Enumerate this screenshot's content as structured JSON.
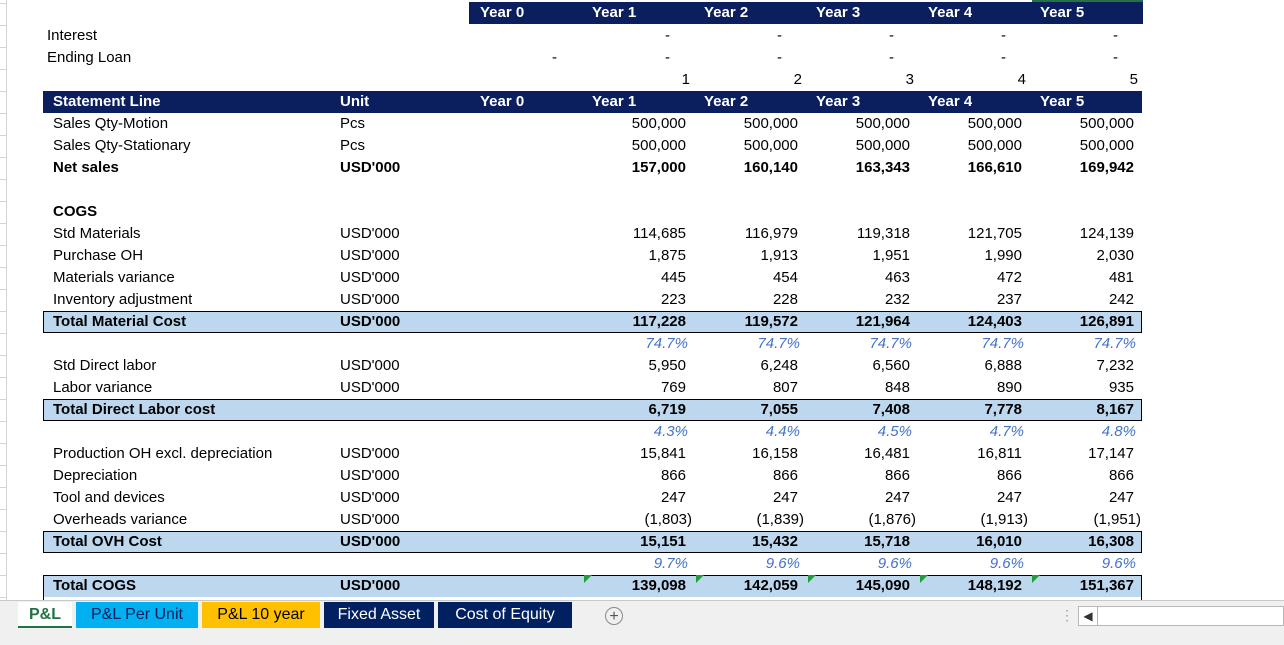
{
  "colors": {
    "header_bg": "#0b1f5e",
    "band_bg": "#bdd7ee",
    "pct_text": "#4472c4",
    "tab_green": "#217346",
    "tab_blue": "#00b0f0",
    "tab_yellow": "#ffc000",
    "tab_navy": "#002060"
  },
  "top_header": {
    "years": [
      "Year 0",
      "Year 1",
      "Year 2",
      "Year 3",
      "Year 4",
      "Year 5"
    ]
  },
  "loan_rows": [
    {
      "label": "Interest",
      "y0": "",
      "y1": "-",
      "y2": "-",
      "y3": "-",
      "y4": "-",
      "y5": "-"
    },
    {
      "label": "Ending Loan",
      "y0": "-",
      "y1": "-",
      "y2": "-",
      "y3": "-",
      "y4": "-",
      "y5": "-"
    }
  ],
  "index_row": [
    "1",
    "2",
    "3",
    "4",
    "5"
  ],
  "table_header": {
    "line": "Statement Line",
    "unit": "Unit",
    "years": [
      "Year 0",
      "Year 1",
      "Year 2",
      "Year 3",
      "Year 4",
      "Year 5"
    ]
  },
  "sales": [
    {
      "label": "Sales Qty-Motion",
      "unit": "Pcs",
      "vals": [
        "500,000",
        "500,000",
        "500,000",
        "500,000",
        "500,000"
      ]
    },
    {
      "label": "Sales Qty-Stationary",
      "unit": "Pcs",
      "vals": [
        "500,000",
        "500,000",
        "500,000",
        "500,000",
        "500,000"
      ]
    }
  ],
  "net_sales": {
    "label": "Net sales",
    "unit": "USD'000",
    "vals": [
      "157,000",
      "160,140",
      "163,343",
      "166,610",
      "169,942"
    ]
  },
  "cogs_title": "COGS",
  "materials": [
    {
      "label": "Std Materials",
      "unit": "USD'000",
      "vals": [
        "114,685",
        "116,979",
        "119,318",
        "121,705",
        "124,139"
      ]
    },
    {
      "label": "Purchase OH",
      "unit": "USD'000",
      "vals": [
        "1,875",
        "1,913",
        "1,951",
        "1,990",
        "2,030"
      ]
    },
    {
      "label": "Materials variance",
      "unit": "USD'000",
      "vals": [
        "445",
        "454",
        "463",
        "472",
        "481"
      ]
    },
    {
      "label": "Inventory adjustment",
      "unit": "USD'000",
      "vals": [
        "223",
        "228",
        "232",
        "237",
        "242"
      ]
    }
  ],
  "total_material": {
    "label": "Total Material Cost",
    "unit": "USD'000",
    "vals": [
      "117,228",
      "119,572",
      "121,964",
      "124,403",
      "126,891"
    ],
    "pct": [
      "74.7%",
      "74.7%",
      "74.7%",
      "74.7%",
      "74.7%"
    ]
  },
  "labor": [
    {
      "label": "Std Direct labor",
      "unit": "USD'000",
      "vals": [
        "5,950",
        "6,248",
        "6,560",
        "6,888",
        "7,232"
      ]
    },
    {
      "label": "Labor variance",
      "unit": "USD'000",
      "vals": [
        "769",
        "807",
        "848",
        "890",
        "935"
      ]
    }
  ],
  "total_labor": {
    "label": "Total Direct Labor cost",
    "unit": "",
    "vals": [
      "6,719",
      "7,055",
      "7,408",
      "7,778",
      "8,167"
    ],
    "pct": [
      "4.3%",
      "4.4%",
      "4.5%",
      "4.7%",
      "4.8%"
    ]
  },
  "overheads": [
    {
      "label": "Production OH excl. depreciation",
      "unit": "USD'000",
      "vals": [
        "15,841",
        "16,158",
        "16,481",
        "16,811",
        "17,147"
      ]
    },
    {
      "label": "Depreciation",
      "unit": "USD'000",
      "vals": [
        "866",
        "866",
        "866",
        "866",
        "866"
      ]
    },
    {
      "label": "Tool and devices",
      "unit": "USD'000",
      "vals": [
        "247",
        "247",
        "247",
        "247",
        "247"
      ]
    },
    {
      "label": "Overheads variance",
      "unit": "USD'000",
      "vals": [
        "(1,803)",
        "(1,839)",
        "(1,876)",
        "(1,913)",
        "(1,951)"
      ]
    }
  ],
  "total_ovh": {
    "label": "Total OVH Cost",
    "unit": "USD'000",
    "vals": [
      "15,151",
      "15,432",
      "15,718",
      "16,010",
      "16,308"
    ],
    "pct": [
      "9.7%",
      "9.6%",
      "9.6%",
      "9.6%",
      "9.6%"
    ]
  },
  "total_cogs": {
    "label": "Total COGS",
    "unit": "USD'000",
    "vals": [
      "139,098",
      "142,059",
      "145,090",
      "148,192",
      "151,367"
    ]
  },
  "sheet_tabs": [
    {
      "label": "P&L",
      "active": true
    },
    {
      "label": "P&L Per Unit"
    },
    {
      "label": "P&L 10 year"
    },
    {
      "label": "Fixed Asset"
    },
    {
      "label": "Cost of Equity"
    }
  ],
  "add_sheet_symbol": "+",
  "scroll_left_symbol": "◀"
}
